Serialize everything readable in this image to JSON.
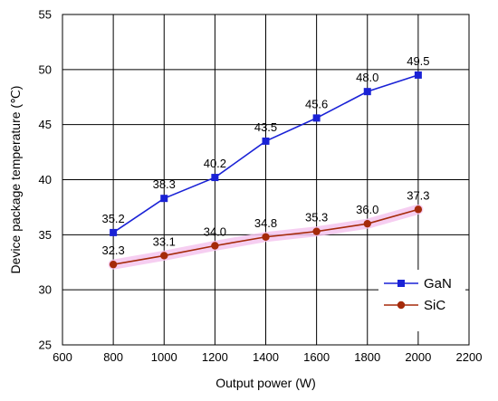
{
  "chart_data": {
    "type": "line",
    "title": "",
    "xlabel": "Output power (W)",
    "ylabel": "Device package temperature (℃)",
    "xlim": [
      600,
      2200
    ],
    "ylim": [
      25,
      55
    ],
    "x_ticks": [
      600,
      800,
      1000,
      1200,
      1400,
      1600,
      1800,
      2000,
      2200
    ],
    "y_ticks": [
      25,
      30,
      35,
      40,
      45,
      50,
      55
    ],
    "x_tick_labels": [
      "600",
      "800",
      "1000",
      "1200",
      "1400",
      "1600",
      "1800",
      "2000",
      "2200"
    ],
    "y_tick_labels": [
      "25",
      "30",
      "35",
      "40",
      "45",
      "50",
      "55"
    ],
    "grid": true,
    "legend_position": "bottom-right",
    "x": [
      800,
      1000,
      1200,
      1400,
      1600,
      1800,
      2000
    ],
    "series": [
      {
        "name": "GaN",
        "values": [
          35.2,
          38.3,
          40.2,
          43.5,
          45.6,
          48.0,
          49.5
        ],
        "labels": [
          "35.2",
          "38.3",
          "40.2",
          "43.5",
          "45.6",
          "48.0",
          "49.5"
        ],
        "color": "#1a22d6",
        "marker": "square"
      },
      {
        "name": "SiC",
        "values": [
          32.3,
          33.1,
          34.0,
          34.8,
          35.3,
          36.0,
          37.3
        ],
        "labels": [
          "32.3",
          "33.1",
          "34.0",
          "34.8",
          "35.3",
          "36.0",
          "37.3"
        ],
        "color": "#a52a0a",
        "marker": "circle",
        "highlight_color": "#f5c6ee"
      }
    ]
  }
}
